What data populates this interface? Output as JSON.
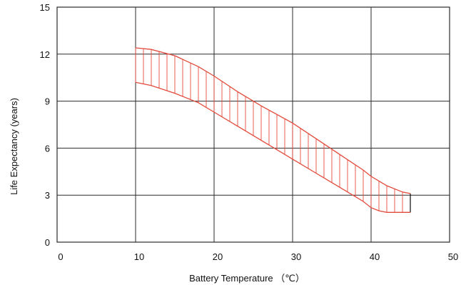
{
  "chart_data": {
    "type": "area",
    "xlabel": "Battery Temperature （℃）",
    "ylabel": "Life Expectancy (years)",
    "xlim": [
      0,
      50
    ],
    "ylim": [
      0,
      15
    ],
    "x_ticks": [
      0,
      10,
      20,
      30,
      40,
      50
    ],
    "y_ticks": [
      0,
      3,
      6,
      9,
      12,
      15
    ],
    "x_tick_labels": [
      "0",
      "10",
      "20",
      "30",
      "40",
      "50"
    ],
    "y_tick_labels": [
      "0",
      "3",
      "6",
      "9",
      "12",
      "15"
    ],
    "grid": true,
    "band": {
      "upper": {
        "x": [
          10,
          12,
          15,
          18,
          20,
          23,
          26,
          30,
          33,
          36,
          39,
          40,
          42,
          44,
          45
        ],
        "y": [
          12.4,
          12.3,
          11.9,
          11.2,
          10.6,
          9.6,
          8.7,
          7.6,
          6.6,
          5.6,
          4.6,
          4.2,
          3.6,
          3.2,
          3.1
        ]
      },
      "lower": {
        "x": [
          10,
          12,
          15,
          18,
          20,
          23,
          26,
          30,
          33,
          36,
          39,
          40,
          41,
          42,
          43,
          45
        ],
        "y": [
          10.2,
          10.0,
          9.5,
          8.9,
          8.3,
          7.4,
          6.5,
          5.3,
          4.4,
          3.5,
          2.6,
          2.2,
          2.0,
          1.9,
          1.9,
          1.9
        ]
      },
      "hatch_step": 1,
      "color": "#e24a3b"
    },
    "colors": {
      "grid": "#2b2b2b",
      "frame": "#2b2b2b",
      "band": "#e24a3b",
      "band_end": "#1a1a1a"
    }
  }
}
